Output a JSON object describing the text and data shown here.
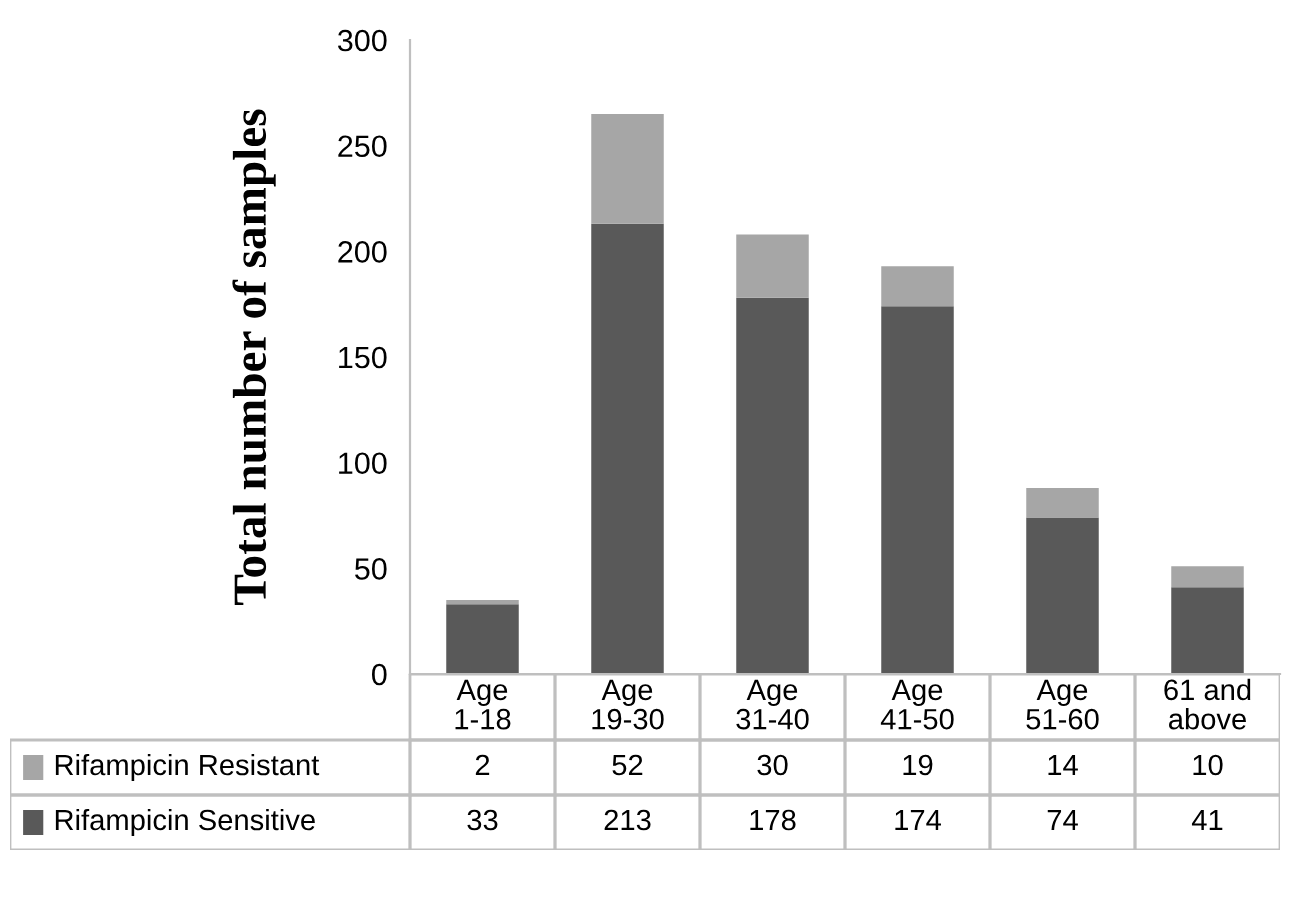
{
  "chart_data": {
    "type": "bar",
    "stacked": true,
    "ylabel": "Total number of samples",
    "categories": [
      "Age 1-18",
      "Age 19-30",
      "Age 31-40",
      "Age 41-50",
      "Age 51-60",
      "61 and above"
    ],
    "series": [
      {
        "name": "Rifampicin Sensitive",
        "color": "#595959",
        "values": [
          33,
          213,
          178,
          174,
          74,
          41
        ]
      },
      {
        "name": "Rifampicin Resistant",
        "color": "#a6a6a6",
        "values": [
          2,
          52,
          30,
          19,
          14,
          10
        ]
      }
    ],
    "ylim": [
      0,
      300
    ],
    "yticks": [
      0,
      50,
      100,
      150,
      200,
      250,
      300
    ],
    "grid": false,
    "data_labels": true,
    "legend": "bottom"
  }
}
